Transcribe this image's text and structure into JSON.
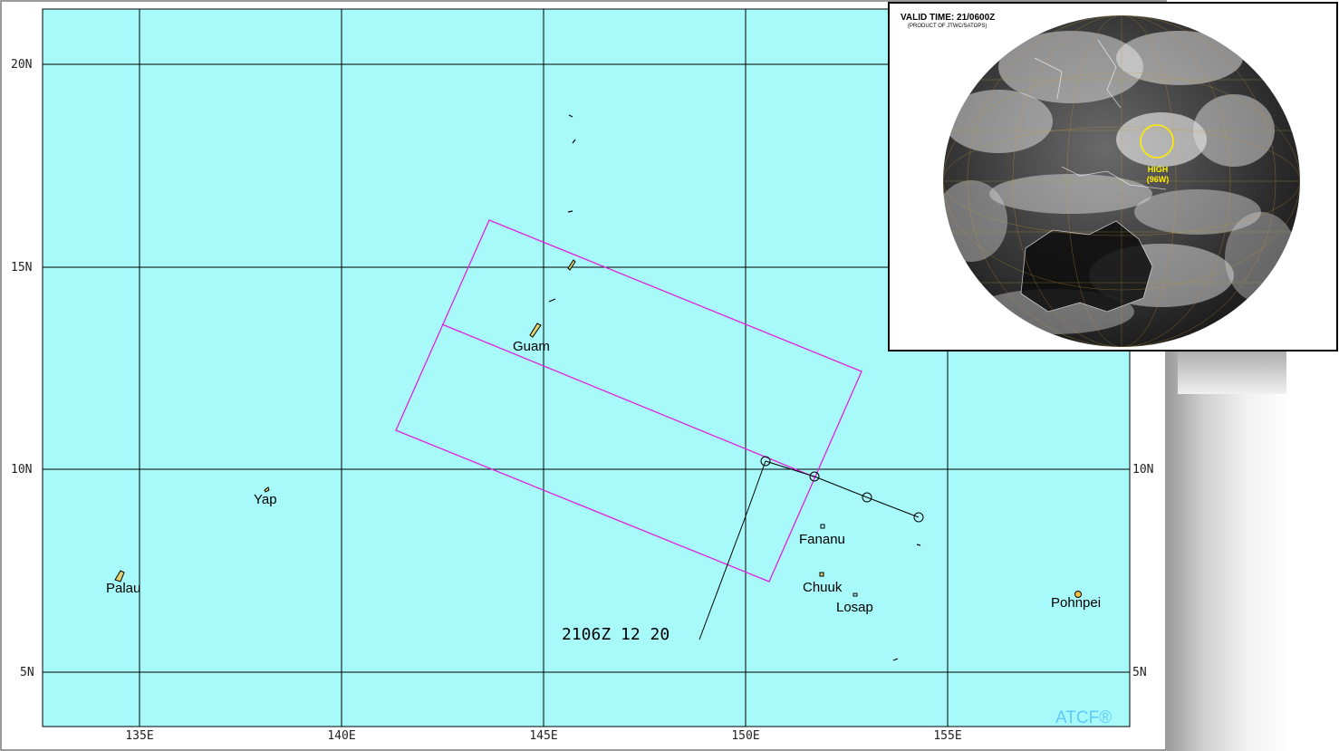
{
  "map": {
    "colors": {
      "ocean": "#a8fafa",
      "grid": "#000000",
      "box": "#e020e0",
      "track": "#000000"
    },
    "longitude_labels": [
      "135E",
      "140E",
      "145E",
      "150E",
      "155E"
    ],
    "latitude_labels_left": [
      "20N",
      "15N",
      "10N",
      "5N"
    ],
    "latitude_labels_right": [
      "10N",
      "5N"
    ],
    "places": [
      "Guam",
      "Yap",
      "Palau",
      "Fananu",
      "Chuuk",
      "Losap",
      "Pohnpei"
    ],
    "warning_label": "2106Z 12  20",
    "brand": "ATCF®"
  },
  "satellite_inset": {
    "valid_time": "VALID TIME: 21/0600Z",
    "product": "(PRODUCT OF JTWC/SATOPS)",
    "area_label_line1": "HIGH",
    "area_label_line2": "(96W)",
    "marker_color": "#ffee00"
  }
}
